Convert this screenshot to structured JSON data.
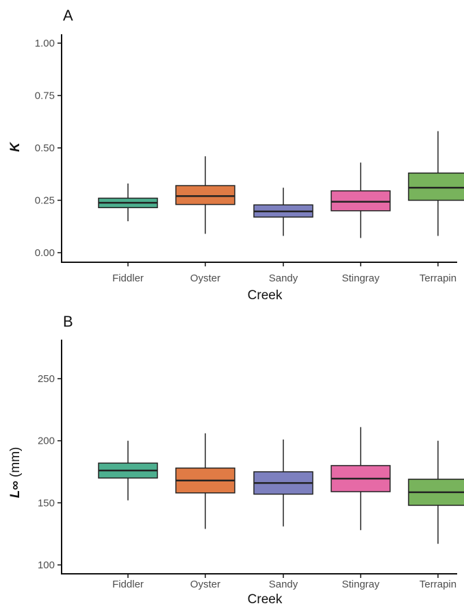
{
  "chart_data": [
    {
      "panel": "A",
      "type": "box",
      "xlabel": "Creek",
      "ylabel": "K",
      "ylabel_italic": true,
      "ylim": [
        0,
        1.0
      ],
      "yticks": [
        0.0,
        0.25,
        0.5,
        0.75,
        1.0
      ],
      "ytick_labels": [
        "0.00",
        "0.25",
        "0.50",
        "0.75",
        "1.00"
      ],
      "categories": [
        "Fiddler",
        "Oyster",
        "Sandy",
        "Stingray",
        "Terrapin"
      ],
      "colors": [
        "#4daf8f",
        "#e07b45",
        "#7d80bf",
        "#e66aa6",
        "#78b35c"
      ],
      "boxes": [
        {
          "min": 0.15,
          "q1": 0.215,
          "median": 0.238,
          "q3": 0.26,
          "max": 0.33
        },
        {
          "min": 0.09,
          "q1": 0.23,
          "median": 0.27,
          "q3": 0.32,
          "max": 0.46
        },
        {
          "min": 0.08,
          "q1": 0.17,
          "median": 0.197,
          "q3": 0.228,
          "max": 0.31
        },
        {
          "min": 0.07,
          "q1": 0.2,
          "median": 0.243,
          "q3": 0.295,
          "max": 0.43
        },
        {
          "min": 0.08,
          "q1": 0.25,
          "median": 0.31,
          "q3": 0.38,
          "max": 0.58
        }
      ]
    },
    {
      "panel": "B",
      "type": "box",
      "xlabel": "Creek",
      "ylabel": "L∞ (mm)",
      "ylabel_italic_part": "L∞",
      "ylabel_plain_part": " (mm)",
      "ylim": [
        100,
        280
      ],
      "yticks": [
        100,
        150,
        200,
        250
      ],
      "ytick_labels": [
        "100",
        "150",
        "200",
        "250"
      ],
      "categories": [
        "Fiddler",
        "Oyster",
        "Sandy",
        "Stingray",
        "Terrapin"
      ],
      "colors": [
        "#4daf8f",
        "#e07b45",
        "#7d80bf",
        "#e66aa6",
        "#78b35c"
      ],
      "boxes": [
        {
          "min": 152,
          "q1": 170,
          "median": 176,
          "q3": 182,
          "max": 200
        },
        {
          "min": 129,
          "q1": 158,
          "median": 168,
          "q3": 178,
          "max": 206
        },
        {
          "min": 131,
          "q1": 157,
          "median": 166,
          "q3": 175,
          "max": 201
        },
        {
          "min": 128,
          "q1": 159,
          "median": 169.5,
          "q3": 180,
          "max": 211
        },
        {
          "min": 117,
          "q1": 148,
          "median": 158.5,
          "q3": 169,
          "max": 200
        }
      ]
    }
  ]
}
